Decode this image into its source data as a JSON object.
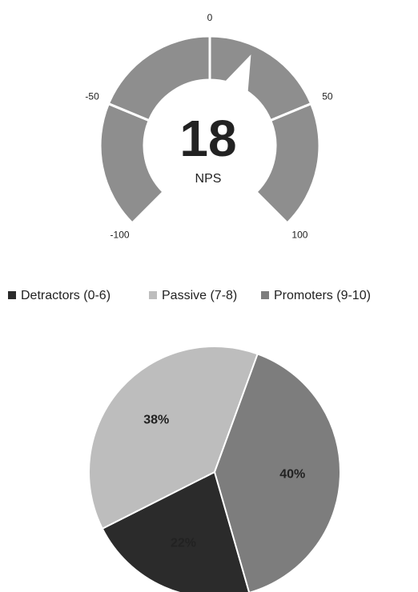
{
  "chart_data": [
    {
      "type": "gauge",
      "value": 18,
      "label": "NPS",
      "color": "#8e8e8e",
      "ylim": [
        -100,
        100
      ],
      "yticks": [
        -100,
        -50,
        0,
        50,
        100
      ]
    },
    {
      "type": "pie",
      "categories": [
        "Detractors (0-6)",
        "Passive (7-8)",
        "Promoters (9-10)"
      ],
      "values": [
        22,
        38,
        40
      ],
      "value_labels": [
        "22%",
        "38%",
        "40%"
      ],
      "colors": [
        "#2b2b2b",
        "#bdbdbd",
        "#7d7d7d"
      ],
      "legend": "top"
    }
  ]
}
